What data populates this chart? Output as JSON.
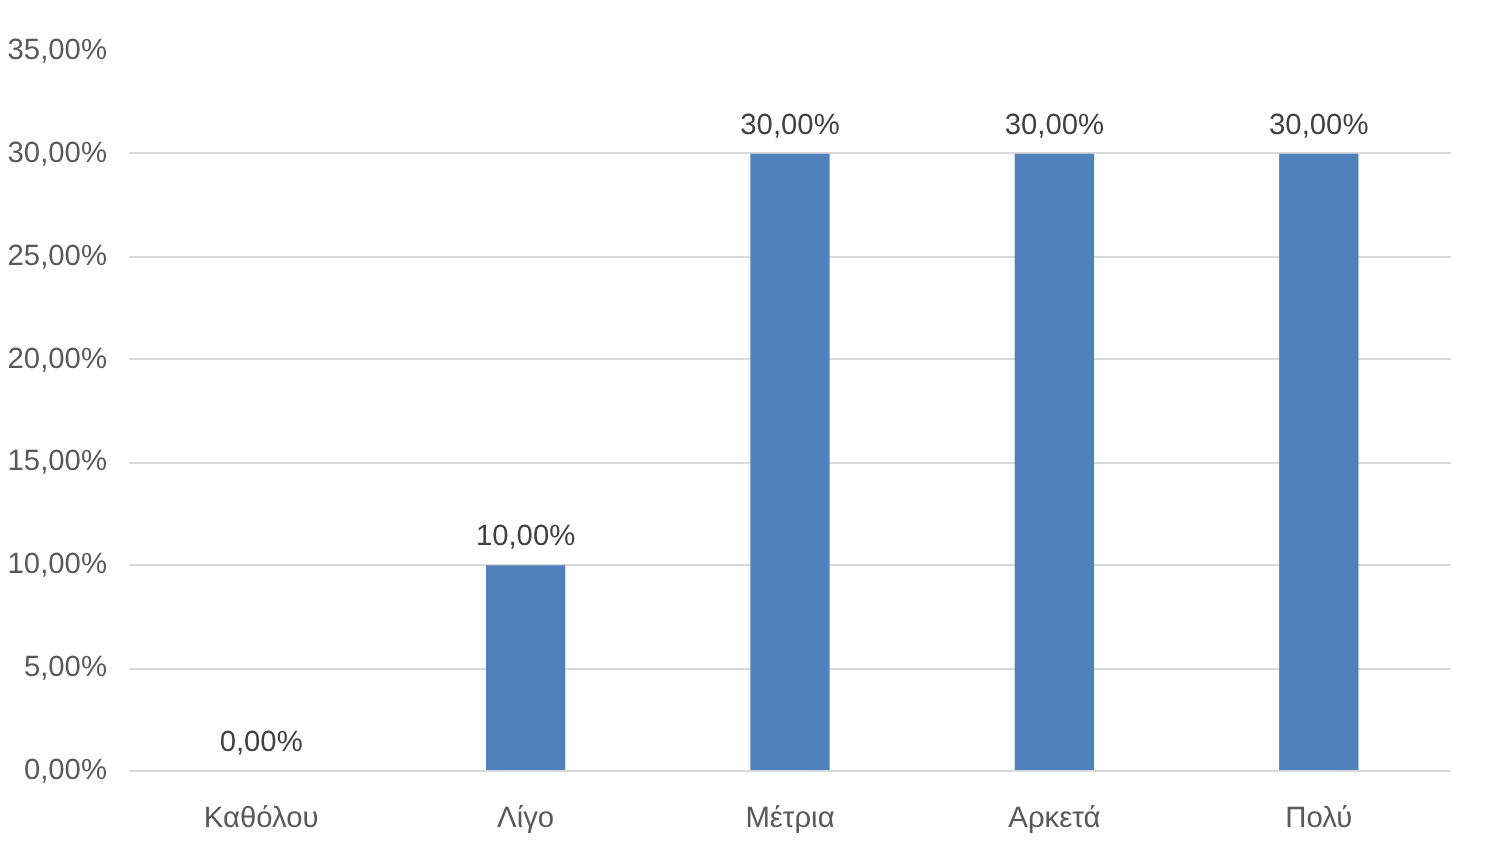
{
  "chart_data": {
    "type": "bar",
    "categories": [
      "Καθόλου",
      "Λίγο",
      "Μέτρια",
      "Αρκετά",
      "Πολύ"
    ],
    "values": [
      0,
      10,
      30,
      30,
      30
    ],
    "value_labels": [
      "0,00%",
      "10,00%",
      "30,00%",
      "30,00%",
      "30,00%"
    ],
    "color": "#4f81bd",
    "ylim": [
      0,
      35
    ],
    "yticks": [
      {
        "value": 0,
        "label": "0,00%"
      },
      {
        "value": 5,
        "label": "5,00%"
      },
      {
        "value": 10,
        "label": "10,00%"
      },
      {
        "value": 15,
        "label": "15,00%"
      },
      {
        "value": 20,
        "label": "20,00%"
      },
      {
        "value": 25,
        "label": "25,00%"
      },
      {
        "value": 30,
        "label": "30,00%"
      },
      {
        "value": 35,
        "label": "35,00%"
      }
    ],
    "grid": "y"
  }
}
